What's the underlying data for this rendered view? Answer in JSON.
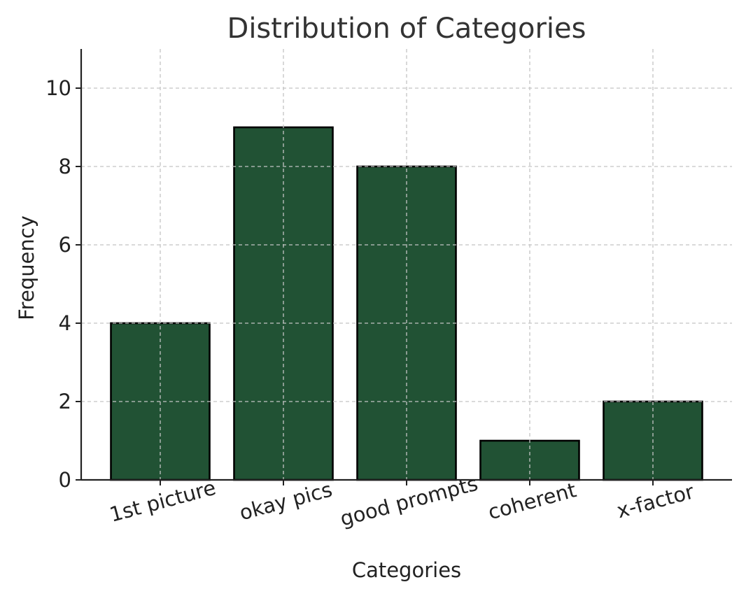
{
  "chart_data": {
    "type": "bar",
    "title": "Distribution of Categories",
    "xlabel": "Categories",
    "ylabel": "Frequency",
    "categories": [
      "1st picture",
      "okay pics",
      "good prompts",
      "coherent",
      "x-factor"
    ],
    "values": [
      4,
      9,
      8,
      1,
      2
    ],
    "ylim": [
      0,
      11
    ],
    "yticks": [
      0,
      2,
      4,
      6,
      8,
      10
    ],
    "grid": true,
    "bar_color": "#215234",
    "bar_edge_color": "#000000"
  }
}
